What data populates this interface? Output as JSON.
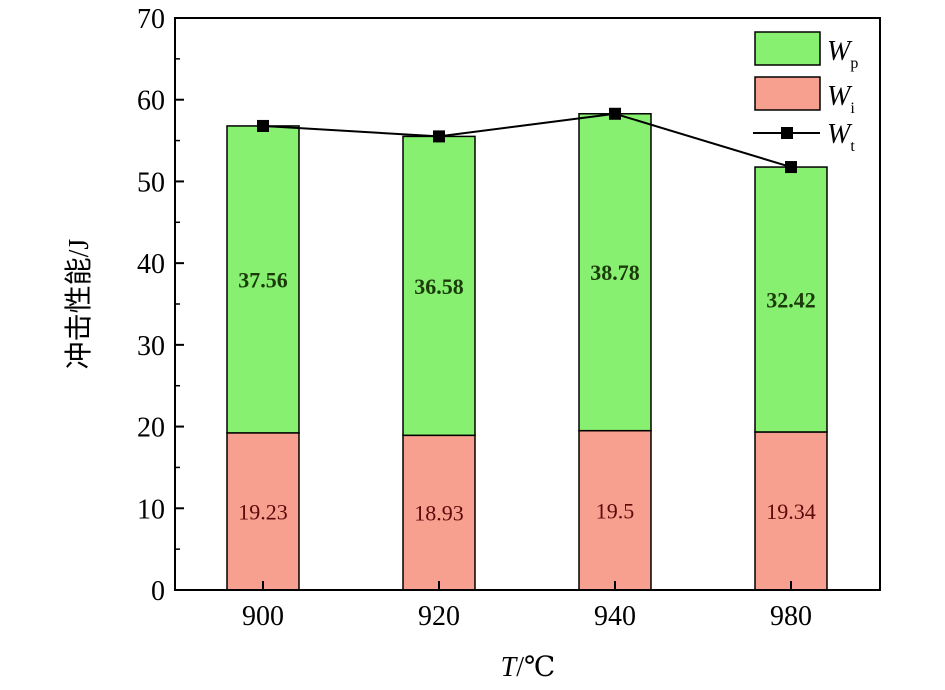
{
  "chart_data": {
    "type": "bar",
    "stacked": true,
    "categories": [
      "900",
      "920",
      "940",
      "980"
    ],
    "series": [
      {
        "name": "Wi",
        "label_main": "W",
        "label_sub": "i",
        "values": [
          19.23,
          18.93,
          19.5,
          19.34
        ],
        "color": "#f8a090"
      },
      {
        "name": "Wp",
        "label_main": "W",
        "label_sub": "p",
        "values": [
          37.56,
          36.58,
          38.78,
          32.42
        ],
        "color": "#88f070"
      }
    ],
    "line_series": {
      "name": "Wt",
      "label_main": "W",
      "label_sub": "t",
      "type": "line",
      "values": [
        56.79,
        55.51,
        58.28,
        51.76
      ],
      "color": "#000000"
    },
    "xlabel_main": "T",
    "xlabel_unit": "/℃",
    "ylabel": "冲击性能/J",
    "ylim": [
      0,
      70
    ],
    "yticks": [
      0,
      10,
      20,
      30,
      40,
      50,
      60,
      70
    ],
    "grid": false,
    "legend": "top-right"
  }
}
